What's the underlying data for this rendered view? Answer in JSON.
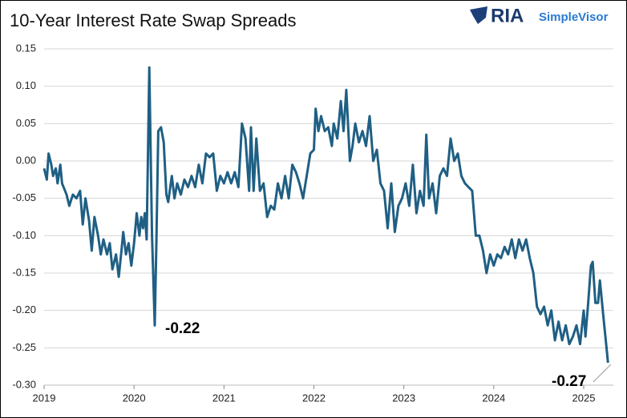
{
  "chart_data": {
    "type": "line",
    "title": "10-Year Interest Rate Swap Spreads",
    "logo": {
      "brand": "RIA",
      "product": "SimpleVisor"
    },
    "annotations": [
      {
        "text": "-0.22"
      },
      {
        "text": "-0.27"
      }
    ],
    "xlim": [
      2019,
      2025.33
    ],
    "xticks": [
      2019,
      2020,
      2021,
      2022,
      2023,
      2024,
      2025
    ],
    "ylim": [
      -0.3,
      0.15
    ],
    "yticks": [
      {
        "value": -0.3,
        "label": "-0.30"
      },
      -0.25,
      {
        "value": -0.2,
        "label": "-0.20"
      },
      -0.15,
      {
        "value": -0.1,
        "label": "-0.10"
      },
      -0.05,
      {
        "value": 0,
        "label": "0.00"
      },
      0.05,
      {
        "value": 0.1,
        "label": "0.10"
      },
      0.15
    ],
    "grid": true,
    "x": [
      2019.0,
      2019.03,
      2019.05,
      2019.08,
      2019.1,
      2019.13,
      2019.15,
      2019.18,
      2019.2,
      2019.25,
      2019.28,
      2019.32,
      2019.36,
      2019.4,
      2019.43,
      2019.46,
      2019.5,
      2019.53,
      2019.56,
      2019.6,
      2019.63,
      2019.66,
      2019.7,
      2019.73,
      2019.76,
      2019.8,
      2019.83,
      2019.86,
      2019.88,
      2019.91,
      2019.94,
      2019.97,
      2020.0,
      2020.03,
      2020.06,
      2020.08,
      2020.1,
      2020.12,
      2020.14,
      2020.17,
      2020.2,
      2020.23,
      2020.25,
      2020.27,
      2020.3,
      2020.33,
      2020.36,
      2020.38,
      2020.42,
      2020.45,
      2020.48,
      2020.52,
      2020.56,
      2020.6,
      2020.64,
      2020.68,
      2020.72,
      2020.76,
      2020.8,
      2020.84,
      2020.88,
      2020.92,
      2020.96,
      2021.0,
      2021.04,
      2021.08,
      2021.12,
      2021.16,
      2021.2,
      2021.24,
      2021.28,
      2021.3,
      2021.33,
      2021.36,
      2021.4,
      2021.44,
      2021.48,
      2021.52,
      2021.56,
      2021.6,
      2021.64,
      2021.68,
      2021.72,
      2021.76,
      2021.8,
      2021.84,
      2021.88,
      2021.92,
      2021.96,
      2022.0,
      2022.02,
      2022.05,
      2022.08,
      2022.12,
      2022.16,
      2022.2,
      2022.22,
      2022.26,
      2022.3,
      2022.33,
      2022.36,
      2022.4,
      2022.43,
      2022.46,
      2022.5,
      2022.54,
      2022.58,
      2022.62,
      2022.66,
      2022.7,
      2022.74,
      2022.78,
      2022.82,
      2022.86,
      2022.9,
      2022.94,
      2022.98,
      2023.02,
      2023.06,
      2023.1,
      2023.14,
      2023.18,
      2023.22,
      2023.25,
      2023.28,
      2023.32,
      2023.36,
      2023.4,
      2023.44,
      2023.48,
      2023.52,
      2023.56,
      2023.6,
      2023.64,
      2023.68,
      2023.72,
      2023.76,
      2023.8,
      2023.84,
      2023.88,
      2023.92,
      2023.96,
      2024.0,
      2024.04,
      2024.08,
      2024.12,
      2024.16,
      2024.2,
      2024.24,
      2024.28,
      2024.32,
      2024.36,
      2024.4,
      2024.44,
      2024.48,
      2024.52,
      2024.56,
      2024.6,
      2024.64,
      2024.68,
      2024.72,
      2024.76,
      2024.8,
      2024.84,
      2024.88,
      2024.92,
      2024.96,
      2025.0,
      2025.02,
      2025.05,
      2025.08,
      2025.1,
      2025.13,
      2025.16,
      2025.18,
      2025.22,
      2025.25,
      2025.27
    ],
    "series": [
      {
        "color": "#1f5f84",
        "values": [
          -0.01,
          -0.025,
          0.01,
          -0.005,
          -0.02,
          -0.01,
          -0.03,
          -0.005,
          -0.03,
          -0.045,
          -0.06,
          -0.045,
          -0.05,
          -0.04,
          -0.085,
          -0.05,
          -0.08,
          -0.12,
          -0.075,
          -0.1,
          -0.125,
          -0.105,
          -0.125,
          -0.11,
          -0.145,
          -0.125,
          -0.155,
          -0.12,
          -0.095,
          -0.125,
          -0.11,
          -0.14,
          -0.11,
          -0.07,
          -0.1,
          -0.075,
          -0.09,
          -0.07,
          -0.105,
          0.125,
          -0.1,
          -0.22,
          -0.1,
          0.04,
          0.045,
          0.025,
          -0.045,
          -0.055,
          -0.02,
          -0.05,
          -0.03,
          -0.045,
          -0.025,
          -0.035,
          -0.02,
          -0.035,
          -0.005,
          -0.03,
          0.01,
          0.005,
          0.01,
          -0.04,
          -0.02,
          -0.03,
          -0.015,
          -0.03,
          -0.015,
          -0.035,
          0.05,
          0.03,
          -0.04,
          0.045,
          -0.04,
          0.03,
          -0.04,
          -0.03,
          -0.075,
          -0.06,
          -0.065,
          -0.03,
          -0.05,
          -0.02,
          -0.05,
          -0.005,
          -0.015,
          -0.03,
          -0.05,
          -0.02,
          0.01,
          0.015,
          0.07,
          0.04,
          0.06,
          0.04,
          0.045,
          0.02,
          0.05,
          0.03,
          0.08,
          0.04,
          0.095,
          0.0,
          0.02,
          0.05,
          0.025,
          0.04,
          0.02,
          0.06,
          0.0,
          0.015,
          -0.03,
          -0.04,
          -0.09,
          -0.03,
          -0.095,
          -0.06,
          -0.05,
          -0.03,
          -0.06,
          -0.005,
          -0.07,
          -0.04,
          -0.06,
          0.035,
          -0.05,
          -0.03,
          -0.07,
          -0.02,
          -0.01,
          -0.02,
          0.03,
          0.0,
          0.01,
          -0.02,
          -0.03,
          -0.035,
          -0.04,
          -0.1,
          -0.1,
          -0.12,
          -0.15,
          -0.125,
          -0.14,
          -0.125,
          -0.13,
          -0.115,
          -0.125,
          -0.105,
          -0.13,
          -0.105,
          -0.12,
          -0.105,
          -0.13,
          -0.15,
          -0.195,
          -0.205,
          -0.195,
          -0.22,
          -0.2,
          -0.24,
          -0.215,
          -0.24,
          -0.22,
          -0.245,
          -0.235,
          -0.22,
          -0.245,
          -0.2,
          -0.235,
          -0.19,
          -0.14,
          -0.135,
          -0.19,
          -0.19,
          -0.16,
          -0.21,
          -0.245,
          -0.27
        ]
      }
    ]
  }
}
